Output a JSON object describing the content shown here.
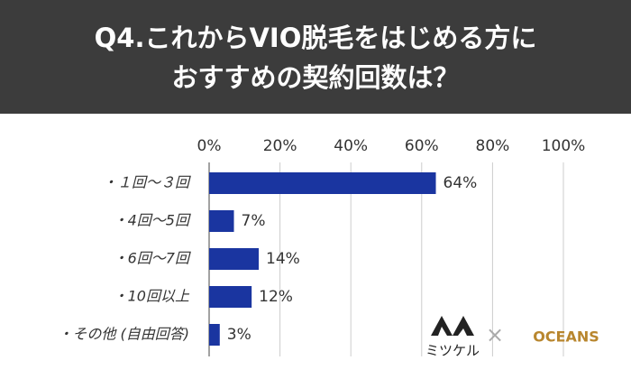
{
  "chart_data": {
    "type": "barh",
    "title": [
      "Q4.これからVIO脱毛をはじめる方に",
      "おすすめの契約回数は？"
    ],
    "categories": [
      "・１回～３回",
      "・4回～5回",
      "・6回～7回",
      "・10回以上",
      "・その他 (自由回答)"
    ],
    "values": [
      64,
      7,
      14,
      12,
      3
    ],
    "value_labels": [
      "64%",
      "7%",
      "14%",
      "12%",
      "3%"
    ],
    "color": "#1a35a0",
    "xlim": [
      0,
      100
    ],
    "xticks": [
      {
        "value": 0,
        "label": "0%"
      },
      {
        "value": 20,
        "label": "20%"
      },
      {
        "value": 40,
        "label": "40%"
      },
      {
        "value": 60,
        "label": "60%"
      },
      {
        "value": 80,
        "label": "80%"
      },
      {
        "value": 100,
        "label": "100%"
      }
    ],
    "grid": true
  },
  "logos": [
    "ミツケル",
    "×",
    "OCEANS"
  ]
}
